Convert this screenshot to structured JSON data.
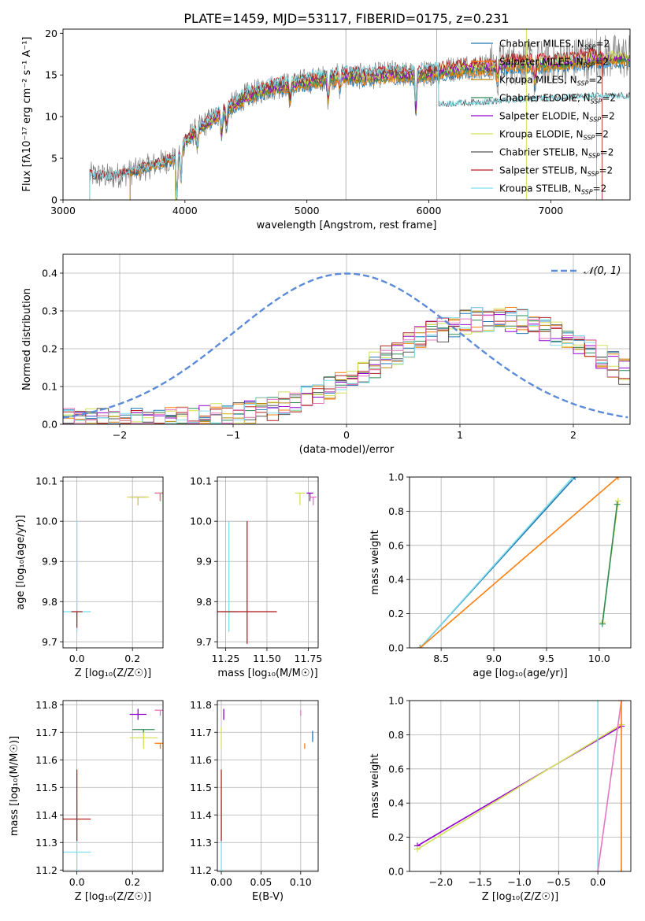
{
  "figure": {
    "title": "PLATE=1459, MJD=53117, FIBERID=0175, z=0.231"
  },
  "colors": {
    "Chabrier MILES": "#1f77b4",
    "Salpeter MILES": "#ff7f0e",
    "Kroupa MILES": "#b8860b",
    "Chabrier ELODIE": "#2e8b57",
    "Salpeter ELODIE": "#9400d3",
    "Kroupa ELODIE": "#d4e157",
    "Chabrier STELIB": "#555555",
    "Salpeter STELIB": "#b22222",
    "Kroupa STELIB": "#80deea",
    "pink": "#e377c2",
    "data": "#808080",
    "gauss": "#5b8bd9"
  },
  "chart_data": [
    {
      "type": "line",
      "name": "spectrum",
      "title": "PLATE=1459, MJD=53117, FIBERID=0175, z=0.231",
      "xlabel": "wavelength [Angstrom, rest frame]",
      "ylabel": "Flux [f_λ 10^-17 erg cm^-2 s^-1 A^-1]",
      "xlim": [
        3000,
        7650
      ],
      "ylim": [
        0,
        20.5
      ],
      "xticks": [
        3000,
        4000,
        5000,
        6000,
        7000
      ],
      "yticks": [
        0,
        5,
        10,
        15,
        20
      ],
      "legend_position": "top-right",
      "legend": [
        "Chabrier MILES, N_SSP=2",
        "Salpeter MILES, N_SSP=2",
        "Kroupa MILES, N_SSP=2",
        "Chabrier ELODIE, N_SSP=2",
        "Salpeter ELODIE, N_SSP=2",
        "Kroupa ELODIE, N_SSP=2",
        "Chabrier STELIB, N_SSP=2",
        "Salpeter STELIB, N_SSP=2",
        "Kroupa STELIB, N_SSP=2"
      ],
      "continuum": {
        "x": [
          3220,
          3400,
          3600,
          3800,
          3920,
          4000,
          4100,
          4300,
          4500,
          4700,
          4900,
          5100,
          5300,
          5500,
          5700,
          5900,
          6100,
          6300,
          6500,
          6700,
          7000,
          7300,
          7400
        ],
        "y": [
          3.0,
          2.8,
          3.5,
          4.5,
          5.0,
          7.0,
          8.5,
          10.5,
          12.5,
          13.5,
          14.0,
          14.5,
          15.0,
          14.8,
          15.2,
          15.0,
          15.5,
          16.0,
          16.0,
          16.5,
          16.5,
          17.0,
          17.2
        ]
      },
      "stelib_dropout": {
        "x": [
          6100,
          7300
        ],
        "y": [
          11.5,
          12.5
        ]
      }
    },
    {
      "type": "bar",
      "name": "residual-histogram",
      "xlabel": "(data-model)/error",
      "ylabel": "Normed distribution",
      "xlim": [
        -2.5,
        2.5
      ],
      "ylim": [
        0,
        0.45
      ],
      "xticks": [
        -2,
        -1,
        0,
        1,
        2
      ],
      "yticks": [
        0.0,
        0.1,
        0.2,
        0.3,
        0.4
      ],
      "legend": [
        "𝒩(0, 1)"
      ],
      "legend_position": "top-right",
      "bin_width": 0.1
    },
    {
      "type": "scatter",
      "name": "age-vs-Z",
      "xlabel": "Z [log10(Z/Z_⊙)]",
      "ylabel": "age  [log10(age/yr)]",
      "xlim": [
        -0.05,
        0.31
      ],
      "ylim": [
        9.685,
        10.11
      ],
      "xticks": [
        0.0,
        0.2
      ],
      "yticks": [
        9.7,
        9.8,
        9.9,
        10.0,
        10.1
      ],
      "points": [
        {
          "series": "Kroupa STELIB",
          "x": 0.0,
          "y": 9.775,
          "xerr": 0.05,
          "yerr": [
            0.05,
            0.225
          ]
        },
        {
          "series": "Salpeter STELIB",
          "x": 0.0,
          "y": 9.775,
          "xerr": 0.02,
          "yerr": [
            0.04,
            0.0
          ]
        },
        {
          "series": "Salpeter ELODIE",
          "x": 0.22,
          "y": 10.06,
          "xerr": 0.03,
          "yerr": [
            0.02,
            0.0
          ]
        },
        {
          "series": "Kroupa ELODIE",
          "x": 0.22,
          "y": 10.06,
          "xerr": 0.04,
          "yerr": [
            0.02,
            0.0
          ]
        },
        {
          "series": "Kroupa MILES",
          "x": 0.3,
          "y": 10.07,
          "xerr": 0.02,
          "yerr": [
            0.02,
            0.0
          ]
        },
        {
          "series": "pink",
          "x": 0.3,
          "y": 10.07,
          "xerr": 0.02,
          "yerr": [
            0.02,
            0.0
          ]
        }
      ]
    },
    {
      "type": "scatter",
      "name": "age-vs-mass",
      "xlabel": "mass [log10(M/M_⊙)]",
      "ylabel": "",
      "xlim": [
        11.2,
        11.81
      ],
      "ylim": [
        9.685,
        10.11
      ],
      "xticks": [
        11.25,
        11.5,
        11.75
      ],
      "yticks": [
        9.7,
        9.8,
        9.9,
        10.0,
        10.1
      ],
      "points": [
        {
          "series": "Kroupa STELIB",
          "x": 11.27,
          "y": 9.775,
          "xerr": 0.05,
          "yerr": [
            0.05,
            0.225
          ]
        },
        {
          "series": "Salpeter STELIB",
          "x": 11.38,
          "y": 9.775,
          "xerr": 0.18,
          "yerr": [
            0.08,
            0.225
          ]
        },
        {
          "series": "Kroupa ELODIE",
          "x": 11.7,
          "y": 10.07,
          "xerr": 0.03,
          "yerr": [
            0.03,
            0.0
          ]
        },
        {
          "series": "Salpeter ELODIE",
          "x": 11.76,
          "y": 10.07,
          "xerr": 0.02,
          "yerr": [
            0.02,
            0.0
          ]
        },
        {
          "series": "pink",
          "x": 11.78,
          "y": 10.06,
          "xerr": 0.02,
          "yerr": [
            0.02,
            0.0
          ]
        }
      ]
    },
    {
      "type": "line",
      "name": "mass-weight-vs-age",
      "xlabel": "age  [log10(age/yr)]",
      "ylabel": "mass weight",
      "xlim": [
        8.2,
        10.3
      ],
      "ylim": [
        0,
        1
      ],
      "xticks": [
        8.5,
        9.0,
        9.5,
        10.0
      ],
      "yticks": [
        0.0,
        0.2,
        0.4,
        0.6,
        0.8,
        1.0
      ],
      "series": [
        {
          "series": "Chabrier MILES",
          "x": [
            8.3,
            9.77
          ],
          "y": [
            0.0,
            1.0
          ]
        },
        {
          "series": "Kroupa STELIB",
          "x": [
            8.3,
            9.75
          ],
          "y": [
            0.0,
            1.0
          ]
        },
        {
          "series": "Salpeter MILES",
          "x": [
            8.3,
            10.18
          ],
          "y": [
            0.0,
            1.0
          ]
        },
        {
          "series": "Kroupa ELODIE",
          "x": [
            10.03,
            10.18
          ],
          "y": [
            0.15,
            0.86
          ]
        },
        {
          "series": "Chabrier ELODIE",
          "x": [
            10.03,
            10.17
          ],
          "y": [
            0.14,
            0.84
          ]
        }
      ]
    },
    {
      "type": "scatter",
      "name": "mass-vs-Z",
      "xlabel": "Z [log10(Z/Z_⊙)]",
      "ylabel": "mass [log10(M/M_⊙)]",
      "xlim": [
        -0.05,
        0.31
      ],
      "ylim": [
        11.195,
        11.815
      ],
      "xticks": [
        0.0,
        0.2
      ],
      "yticks": [
        11.2,
        11.3,
        11.4,
        11.5,
        11.6,
        11.7,
        11.8
      ],
      "points": [
        {
          "series": "Kroupa STELIB",
          "x": 0.0,
          "y": 11.265,
          "xerr": 0.05,
          "yerr": [
            0.07,
            0.19
          ]
        },
        {
          "series": "Salpeter STELIB",
          "x": 0.0,
          "y": 11.385,
          "xerr": 0.05,
          "yerr": [
            0.08,
            0.18
          ]
        },
        {
          "series": "Salpeter ELODIE",
          "x": 0.22,
          "y": 11.765,
          "xerr": 0.03,
          "yerr": [
            0.02,
            0.02
          ]
        },
        {
          "series": "Chabrier ELODIE",
          "x": 0.24,
          "y": 11.71,
          "xerr": 0.04,
          "yerr": [
            0.02,
            0.0
          ]
        },
        {
          "series": "Kroupa ELODIE",
          "x": 0.24,
          "y": 11.68,
          "xerr": 0.05,
          "yerr": [
            0.04,
            0.02
          ]
        },
        {
          "series": "pink",
          "x": 0.3,
          "y": 11.78,
          "xerr": 0.02,
          "yerr": [
            0.02,
            0.0
          ]
        },
        {
          "series": "Salpeter MILES",
          "x": 0.3,
          "y": 11.66,
          "xerr": 0.02,
          "yerr": [
            0.02,
            0.0
          ]
        }
      ]
    },
    {
      "type": "scatter",
      "name": "mass-vs-ebv",
      "xlabel": "E(B-V)",
      "ylabel": "",
      "xlim": [
        -0.005,
        0.122
      ],
      "ylim": [
        11.195,
        11.815
      ],
      "xticks": [
        0.0,
        0.05,
        0.1
      ],
      "yticks": [
        11.2,
        11.3,
        11.4,
        11.5,
        11.6,
        11.7,
        11.8
      ],
      "points": [
        {
          "series": "Kroupa STELIB",
          "x": 0.0,
          "y": 11.265,
          "yerr": [
            0.07,
            0.19
          ]
        },
        {
          "series": "Salpeter STELIB",
          "x": 0.0,
          "y": 11.385,
          "yerr": [
            0.08,
            0.18
          ]
        },
        {
          "series": "Kroupa ELODIE",
          "x": 0.0,
          "y": 11.68,
          "yerr": [
            0.04,
            0.04
          ]
        },
        {
          "series": "Salpeter ELODIE",
          "x": 0.003,
          "y": 11.765,
          "yerr": [
            0.02,
            0.02
          ]
        },
        {
          "series": "pink",
          "x": 0.1,
          "y": 11.78,
          "yerr": [
            0.02,
            0.0
          ]
        },
        {
          "series": "Salpeter MILES",
          "x": 0.105,
          "y": 11.66,
          "yerr": [
            0.02,
            0.0
          ]
        },
        {
          "series": "Chabrier MILES",
          "x": 0.115,
          "y": 11.685,
          "yerr": [
            0.02,
            0.02
          ]
        }
      ]
    },
    {
      "type": "line",
      "name": "mass-weight-vs-Z",
      "xlabel": "Z [log10(Z/Z_⊙)]",
      "ylabel": "mass weight",
      "xlim": [
        -2.4,
        0.42
      ],
      "ylim": [
        0,
        1
      ],
      "xticks": [
        -2.0,
        -1.5,
        -1.0,
        -0.5,
        0.0
      ],
      "yticks": [
        0.0,
        0.2,
        0.4,
        0.6,
        0.8,
        1.0
      ],
      "series": [
        {
          "series": "Salpeter ELODIE",
          "x": [
            -2.3,
            0.3
          ],
          "y": [
            0.15,
            0.85
          ]
        },
        {
          "series": "Kroupa ELODIE",
          "x": [
            -2.3,
            0.3
          ],
          "y": [
            0.13,
            0.86
          ]
        },
        {
          "series": "Kroupa STELIB",
          "x": [
            0.0,
            0.0
          ],
          "y": [
            0.0,
            1.0
          ]
        },
        {
          "series": "pink",
          "x": [
            0.0,
            0.3
          ],
          "y": [
            0.0,
            1.0
          ]
        },
        {
          "series": "Salpeter MILES",
          "x": [
            0.3,
            0.3
          ],
          "y": [
            0.0,
            1.0
          ]
        }
      ]
    }
  ]
}
